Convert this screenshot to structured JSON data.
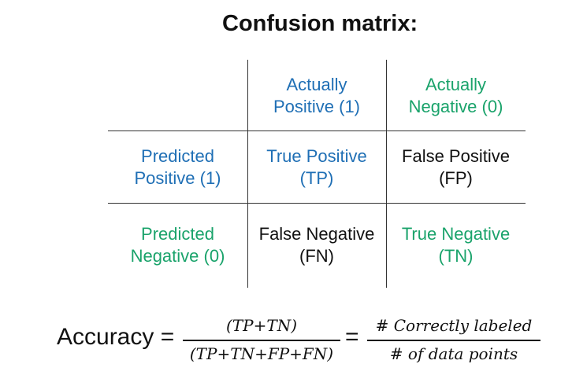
{
  "title": "Confusion matrix:",
  "matrix": {
    "col_headers": [
      {
        "line1": "Actually",
        "line2": "Positive (1)",
        "color": "#1f6fb5"
      },
      {
        "line1": "Actually",
        "line2": "Negative (0)",
        "color": "#1aa36b"
      }
    ],
    "rows": [
      {
        "header": {
          "line1": "Predicted",
          "line2": "Positive (1)",
          "color": "#1f6fb5"
        },
        "cells": [
          {
            "line1": "True Positive",
            "line2": "(TP)",
            "color": "#1f6fb5"
          },
          {
            "line1": "False Positive",
            "line2": "(FP)",
            "color": "#111111"
          }
        ]
      },
      {
        "header": {
          "line1": "Predicted",
          "line2": "Negative (0)",
          "color": "#1aa36b"
        },
        "cells": [
          {
            "line1": "False Negative",
            "line2": "(FN)",
            "color": "#111111"
          },
          {
            "line1": "True Negative",
            "line2": "(TN)",
            "color": "#1aa36b"
          }
        ]
      }
    ]
  },
  "formula": {
    "label": "Accuracy =",
    "frac1_num": "(TP+TN)",
    "frac1_den": "(TP+TN+FP+FN)",
    "equals": "=",
    "frac2_num": "# Correctly labeled",
    "frac2_den": "# of data points"
  }
}
